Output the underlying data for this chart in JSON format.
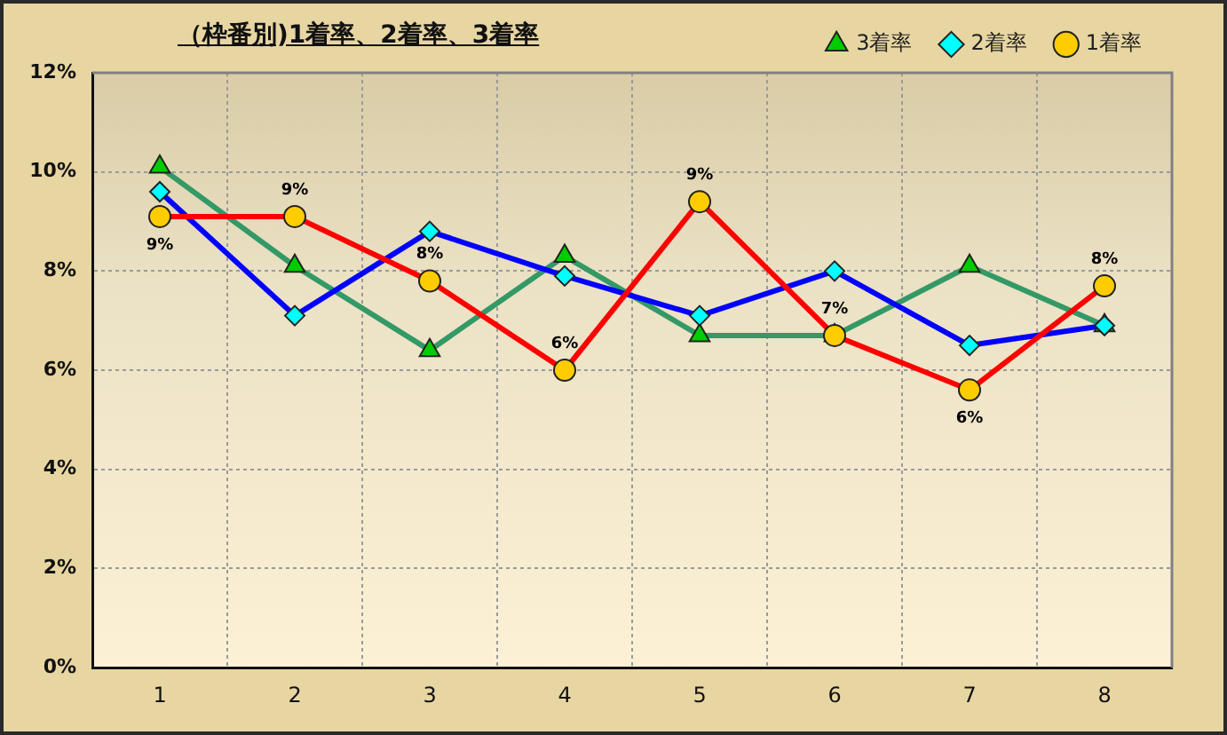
{
  "chart_data": {
    "type": "line",
    "title": "（枠番別)1着率、2着率、3着率",
    "categories": [
      "1",
      "2",
      "3",
      "4",
      "5",
      "6",
      "7",
      "8"
    ],
    "series": [
      {
        "name": "3着率",
        "color": "#339966",
        "marker": "triangle",
        "colors": [
          "#00cc00",
          "#00cc00",
          "#00cc00",
          "#00cc00",
          "#00cc00",
          "#00cc00",
          "#00cc00",
          "#00cc00"
        ],
        "values": [
          10.1,
          8.1,
          6.4,
          8.3,
          6.7,
          6.7,
          8.1,
          6.9
        ]
      },
      {
        "name": "2着率",
        "color": "#0000ff",
        "marker": "diamond",
        "colors": [
          "#00ffff",
          "#00ffff",
          "#00ffff",
          "#00ffff",
          "#00ffff",
          "#00ffff",
          "#00ffff",
          "#00ffff"
        ],
        "values": [
          9.6,
          7.1,
          8.8,
          7.9,
          7.1,
          8.0,
          6.5,
          6.9
        ]
      },
      {
        "name": "1着率",
        "color": "#ff0000",
        "marker": "circle",
        "colors": [
          "#ffcc00",
          "#ffcc00",
          "#ffcc00",
          "#ffcc00",
          "#ffcc00",
          "#ffcc00",
          "#ffcc00",
          "#ffcc00"
        ],
        "values": [
          9.1,
          9.1,
          7.8,
          6.0,
          9.4,
          6.7,
          5.6,
          7.7
        ],
        "value_labels": [
          "9%",
          "9%",
          "8%",
          "6%",
          "9%",
          "7%",
          "6%",
          "8%"
        ]
      }
    ],
    "ylim": [
      0,
      12
    ],
    "yticks": [
      {
        "value": 0,
        "label": "0%"
      },
      {
        "value": 2,
        "label": "2%"
      },
      {
        "value": 4,
        "label": "4%"
      },
      {
        "value": 6,
        "label": "6%"
      },
      {
        "value": 8,
        "label": "8%"
      },
      {
        "value": 10,
        "label": "10%"
      },
      {
        "value": 12,
        "label": "12%"
      }
    ],
    "grid": true,
    "legend": "top right",
    "line_style": "solid"
  }
}
